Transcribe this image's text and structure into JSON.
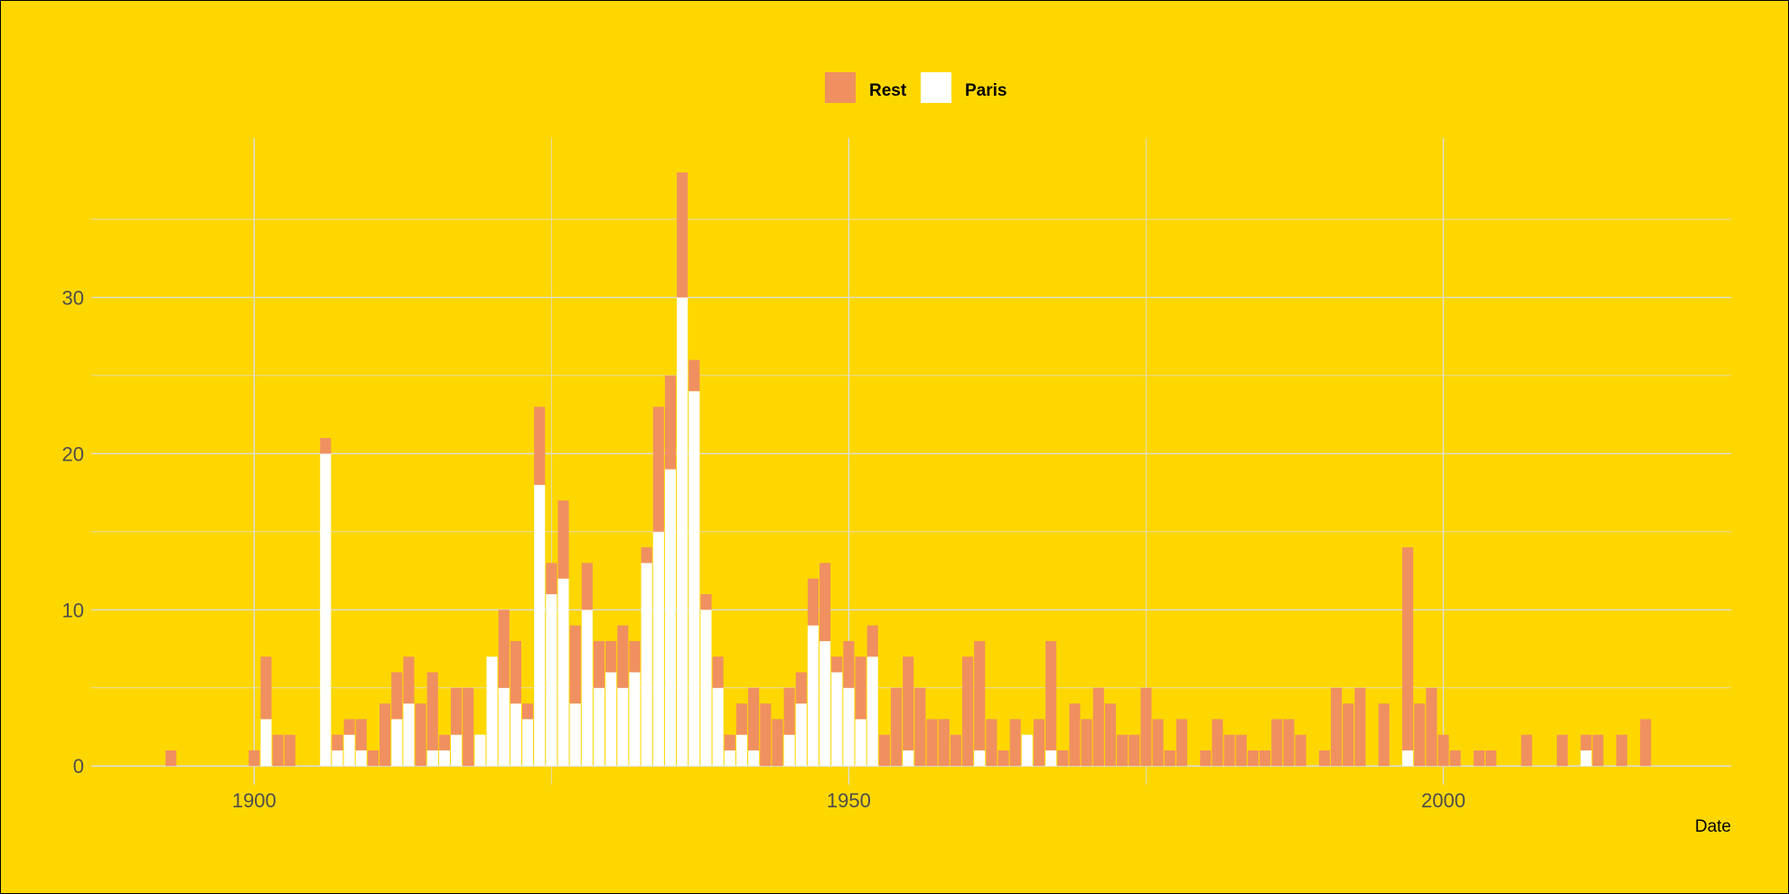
{
  "chart_data": {
    "type": "bar",
    "stacked": true,
    "title": "",
    "xlabel": "Date",
    "ylabel": "",
    "xlim": [
      1886.3,
      2024.2
    ],
    "ylim": [
      -1.2,
      40.2
    ],
    "x_ticks": [
      1900,
      1950,
      2000
    ],
    "y_ticks": [
      0,
      10,
      20,
      30
    ],
    "grid": true,
    "legend_position": "top",
    "background": "#FFD700",
    "series": [
      {
        "name": "Paris",
        "color": "#FFFFFF"
      },
      {
        "name": "Rest",
        "color": "#F09060"
      }
    ],
    "legend_order": [
      "Rest",
      "Paris"
    ],
    "years": [
      1893,
      1900,
      1901,
      1902,
      1903,
      1906,
      1907,
      1908,
      1909,
      1910,
      1911,
      1912,
      1913,
      1914,
      1915,
      1916,
      1917,
      1918,
      1919,
      1920,
      1921,
      1922,
      1923,
      1924,
      1925,
      1926,
      1927,
      1928,
      1929,
      1930,
      1931,
      1932,
      1933,
      1934,
      1935,
      1936,
      1937,
      1938,
      1939,
      1940,
      1941,
      1942,
      1943,
      1944,
      1945,
      1946,
      1947,
      1948,
      1949,
      1950,
      1951,
      1952,
      1953,
      1954,
      1955,
      1956,
      1957,
      1958,
      1959,
      1960,
      1961,
      1962,
      1963,
      1964,
      1965,
      1966,
      1967,
      1968,
      1969,
      1970,
      1971,
      1972,
      1973,
      1974,
      1975,
      1976,
      1977,
      1978,
      1980,
      1981,
      1982,
      1983,
      1984,
      1985,
      1986,
      1987,
      1988,
      1990,
      1991,
      1992,
      1993,
      1995,
      1997,
      1998,
      1999,
      2000,
      2001,
      2003,
      2004,
      2007,
      2010,
      2012,
      2013,
      2015,
      2017
    ],
    "paris": [
      0,
      0,
      3,
      0,
      0,
      20,
      1,
      2,
      1,
      0,
      0,
      3,
      4,
      0,
      1,
      1,
      2,
      0,
      2,
      7,
      5,
      4,
      3,
      18,
      11,
      12,
      4,
      10,
      5,
      6,
      5,
      6,
      13,
      15,
      19,
      30,
      24,
      10,
      5,
      1,
      2,
      1,
      0,
      0,
      2,
      4,
      9,
      8,
      6,
      5,
      3,
      7,
      0,
      0,
      1,
      0,
      0,
      0,
      0,
      0,
      1,
      0,
      0,
      0,
      2,
      0,
      1,
      0,
      0,
      0,
      0,
      0,
      0,
      0,
      0,
      0,
      0,
      0,
      0,
      0,
      0,
      0,
      0,
      0,
      0,
      0,
      0,
      0,
      0,
      0,
      0,
      0,
      1,
      0,
      0,
      0,
      0,
      0,
      0,
      0,
      0,
      1,
      0,
      0,
      0
    ],
    "totals": [
      1,
      1,
      7,
      2,
      2,
      21,
      2,
      3,
      3,
      1,
      4,
      6,
      7,
      4,
      6,
      2,
      5,
      5,
      2,
      7,
      10,
      8,
      4,
      23,
      13,
      17,
      9,
      13,
      8,
      8,
      9,
      8,
      14,
      23,
      25,
      38,
      26,
      11,
      7,
      2,
      4,
      5,
      4,
      3,
      5,
      6,
      12,
      13,
      7,
      8,
      7,
      9,
      2,
      5,
      7,
      5,
      3,
      3,
      2,
      7,
      8,
      3,
      1,
      3,
      2,
      3,
      8,
      1,
      4,
      3,
      5,
      4,
      2,
      2,
      5,
      3,
      1,
      3,
      1,
      3,
      2,
      2,
      1,
      1,
      3,
      3,
      2,
      1,
      5,
      4,
      5,
      4,
      14,
      4,
      5,
      2,
      1,
      1,
      1,
      2,
      2,
      2,
      2,
      2,
      3
    ]
  }
}
